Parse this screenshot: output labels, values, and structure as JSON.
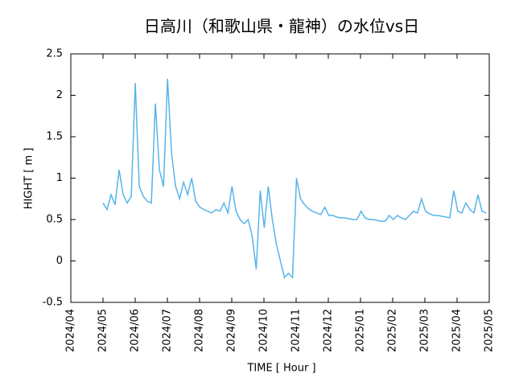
{
  "chart_data": {
    "type": "line",
    "title": "日高川（和歌山県・龍神）の水位vs日",
    "x_label": "TIME [ Hour ]",
    "y_label": "HIGHT [ m ]",
    "xticks": [
      "2024/04",
      "2024/05",
      "2024/06",
      "2024/07",
      "2024/08",
      "2024/09",
      "2024/10",
      "2024/11",
      "2024/12",
      "2025/01",
      "2025/02",
      "2025/03",
      "2025/04",
      "2025/05"
    ],
    "ylim": [
      -0.5,
      2.5
    ],
    "yticks": [
      -0.5,
      0,
      0.5,
      1,
      1.5,
      2,
      2.5
    ],
    "series": [
      {
        "color": "#56b4e9",
        "values": [
          0.7,
          0.62,
          0.8,
          0.68,
          1.1,
          0.8,
          0.7,
          0.78,
          2.15,
          0.9,
          0.78,
          0.72,
          0.7,
          1.9,
          1.1,
          0.9,
          2.2,
          1.3,
          0.9,
          0.75,
          0.95,
          0.8,
          1.0,
          0.72,
          0.65,
          0.62,
          0.6,
          0.58,
          0.62,
          0.6,
          0.7,
          0.58,
          0.9,
          0.6,
          0.5,
          0.45,
          0.5,
          0.3,
          -0.1,
          0.85,
          0.4,
          0.9,
          0.5,
          0.2,
          0.0,
          -0.2,
          -0.15,
          -0.2,
          1.0,
          0.75,
          0.68,
          0.63,
          0.6,
          0.58,
          0.56,
          0.65,
          0.55,
          0.55,
          0.53,
          0.52,
          0.52,
          0.51,
          0.5,
          0.5,
          0.6,
          0.52,
          0.5,
          0.5,
          0.49,
          0.48,
          0.48,
          0.55,
          0.5,
          0.55,
          0.52,
          0.5,
          0.55,
          0.6,
          0.58,
          0.75,
          0.6,
          0.57,
          0.55,
          0.55,
          0.54,
          0.53,
          0.52,
          0.85,
          0.6,
          0.58,
          0.7,
          0.62,
          0.58,
          0.8,
          0.6,
          0.58
        ]
      }
    ]
  }
}
